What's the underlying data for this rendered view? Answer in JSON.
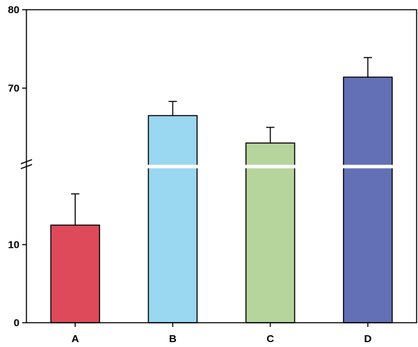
{
  "chart_data": {
    "type": "bar",
    "title": "",
    "xlabel": "",
    "ylabel": "",
    "categories": [
      "A",
      "B",
      "C",
      "D"
    ],
    "series": [
      {
        "values": [
          12.5,
          66.5,
          63.0,
          71.4
        ],
        "errors": [
          4.0,
          1.8,
          2.0,
          2.5
        ],
        "colors": [
          "#df4a5a",
          "#9ad7f0",
          "#b5d59d",
          "#6470b5"
        ]
      }
    ],
    "y_axis_break": {
      "lower_segment": [
        0,
        20
      ],
      "upper_segment": [
        60,
        80
      ]
    },
    "yticks": [
      "0",
      "10",
      "70",
      "80"
    ],
    "grid": false,
    "legend": "none"
  }
}
